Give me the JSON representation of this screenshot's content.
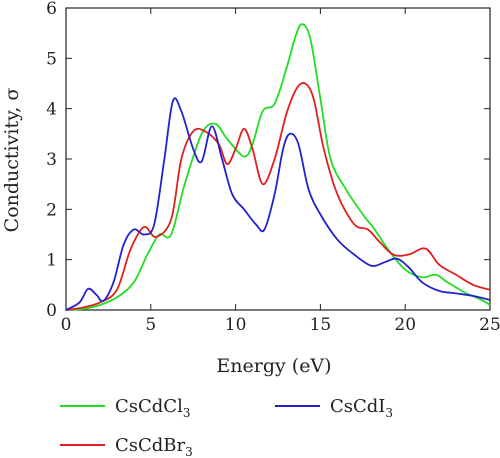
{
  "chart_data": {
    "type": "line",
    "xlabel": "Energy (eV)",
    "ylabel": "Conductivity, σ",
    "xlim": [
      0,
      25
    ],
    "ylim": [
      0,
      6
    ],
    "xticks": [
      0,
      5,
      10,
      15,
      20,
      25
    ],
    "yticks": [
      0,
      1,
      2,
      3,
      4,
      5,
      6
    ],
    "legend_position": "bottom",
    "series": [
      {
        "name": "CsCdCl3",
        "legend_main": "CsCdCl",
        "legend_sub": "3",
        "color": "#22dd22",
        "points": [
          [
            0,
            0
          ],
          [
            1,
            0.02
          ],
          [
            2,
            0.1
          ],
          [
            3,
            0.25
          ],
          [
            4,
            0.55
          ],
          [
            4.8,
            1.1
          ],
          [
            5.5,
            1.5
          ],
          [
            6.2,
            1.5
          ],
          [
            7,
            2.5
          ],
          [
            8,
            3.5
          ],
          [
            8.8,
            3.7
          ],
          [
            9.5,
            3.4
          ],
          [
            10.5,
            3.05
          ],
          [
            11,
            3.3
          ],
          [
            11.6,
            3.95
          ],
          [
            12.3,
            4.1
          ],
          [
            13,
            4.8
          ],
          [
            13.5,
            5.4
          ],
          [
            13.9,
            5.68
          ],
          [
            14.4,
            5.4
          ],
          [
            15,
            4.2
          ],
          [
            15.6,
            3.0
          ],
          [
            16.5,
            2.4
          ],
          [
            17.5,
            1.9
          ],
          [
            18.2,
            1.6
          ],
          [
            19,
            1.2
          ],
          [
            20,
            0.8
          ],
          [
            21,
            0.65
          ],
          [
            21.8,
            0.7
          ],
          [
            22.5,
            0.55
          ],
          [
            23.5,
            0.35
          ],
          [
            24.5,
            0.2
          ],
          [
            25,
            0.1
          ]
        ]
      },
      {
        "name": "CsCdBr3",
        "legend_main": "CsCdBr",
        "legend_sub": "3",
        "color": "#e02020",
        "points": [
          [
            0,
            0
          ],
          [
            1,
            0.05
          ],
          [
            2,
            0.15
          ],
          [
            3,
            0.4
          ],
          [
            3.8,
            1.2
          ],
          [
            4.6,
            1.65
          ],
          [
            5.3,
            1.45
          ],
          [
            6.2,
            1.8
          ],
          [
            6.8,
            3.0
          ],
          [
            7.5,
            3.55
          ],
          [
            8.2,
            3.55
          ],
          [
            9,
            3.3
          ],
          [
            9.5,
            2.9
          ],
          [
            10,
            3.2
          ],
          [
            10.5,
            3.6
          ],
          [
            11,
            3.2
          ],
          [
            11.6,
            2.5
          ],
          [
            12.3,
            3.0
          ],
          [
            13,
            3.9
          ],
          [
            13.6,
            4.4
          ],
          [
            14.1,
            4.5
          ],
          [
            14.6,
            4.2
          ],
          [
            15.2,
            3.2
          ],
          [
            16,
            2.3
          ],
          [
            17,
            1.7
          ],
          [
            17.8,
            1.6
          ],
          [
            18.5,
            1.35
          ],
          [
            19.3,
            1.1
          ],
          [
            20.2,
            1.1
          ],
          [
            21.2,
            1.22
          ],
          [
            22,
            0.9
          ],
          [
            23,
            0.7
          ],
          [
            24,
            0.5
          ],
          [
            25,
            0.4
          ]
        ]
      },
      {
        "name": "CsCdI3",
        "legend_main": "CsCdI",
        "legend_sub": "3",
        "color": "#2222cc",
        "points": [
          [
            0,
            0
          ],
          [
            0.8,
            0.15
          ],
          [
            1.3,
            0.42
          ],
          [
            1.8,
            0.3
          ],
          [
            2.2,
            0.18
          ],
          [
            2.8,
            0.55
          ],
          [
            3.4,
            1.3
          ],
          [
            4,
            1.6
          ],
          [
            4.6,
            1.5
          ],
          [
            5.2,
            1.7
          ],
          [
            5.8,
            3.0
          ],
          [
            6.3,
            4.15
          ],
          [
            6.8,
            3.95
          ],
          [
            7.5,
            3.2
          ],
          [
            8,
            2.95
          ],
          [
            8.6,
            3.65
          ],
          [
            9.2,
            3.0
          ],
          [
            9.8,
            2.3
          ],
          [
            10.5,
            2.0
          ],
          [
            11.2,
            1.7
          ],
          [
            11.7,
            1.6
          ],
          [
            12.3,
            2.3
          ],
          [
            12.8,
            3.2
          ],
          [
            13.2,
            3.5
          ],
          [
            13.7,
            3.3
          ],
          [
            14.3,
            2.4
          ],
          [
            15,
            1.9
          ],
          [
            16,
            1.4
          ],
          [
            17,
            1.1
          ],
          [
            18,
            0.88
          ],
          [
            18.8,
            0.95
          ],
          [
            19.5,
            1.02
          ],
          [
            20.2,
            0.85
          ],
          [
            21,
            0.55
          ],
          [
            22,
            0.38
          ],
          [
            23,
            0.33
          ],
          [
            24,
            0.28
          ],
          [
            25,
            0.2
          ]
        ]
      }
    ]
  }
}
